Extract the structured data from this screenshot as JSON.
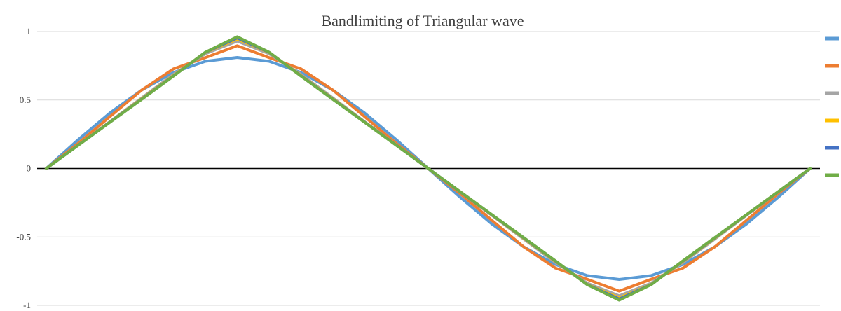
{
  "chart_data": {
    "type": "line",
    "title": "Bandlimiting of Triangular wave",
    "xlabel": "",
    "ylabel": "",
    "ylim": [
      -1,
      1
    ],
    "yticks": [
      1,
      0.5,
      0,
      -0.5,
      -1
    ],
    "ytick_labels": [
      "1",
      "0.5",
      "0",
      "-0.5",
      "-1"
    ],
    "grid": true,
    "legend": "right",
    "x": [
      0,
      0.0417,
      0.0833,
      0.125,
      0.1667,
      0.2083,
      0.25,
      0.2917,
      0.3333,
      0.375,
      0.4167,
      0.4583,
      0.5,
      0.5417,
      0.5833,
      0.625,
      0.6667,
      0.7083,
      0.75,
      0.7917,
      0.8333,
      0.875,
      0.9167,
      0.9583,
      1
    ],
    "series": [
      {
        "color": "#5b9bd5",
        "values": [
          0,
          0.2097,
          0.405,
          0.5728,
          0.7015,
          0.7824,
          0.8106,
          0.7824,
          0.7015,
          0.5728,
          0.405,
          0.2097,
          0,
          -0.2097,
          -0.405,
          -0.5728,
          -0.7015,
          -0.7824,
          -0.8106,
          -0.7824,
          -0.7015,
          -0.5728,
          -0.405,
          -0.2097,
          0
        ]
      },
      {
        "color": "#ed7d31",
        "values": [
          0,
          0.1824,
          0.3787,
          0.5728,
          0.7278,
          0.8097,
          0.8956,
          0.8097,
          0.7278,
          0.5728,
          0.3787,
          0.1824,
          0,
          -0.1824,
          -0.3787,
          -0.5728,
          -0.7278,
          -0.8097,
          -0.8956,
          -0.8097,
          -0.7278,
          -0.5728,
          -0.3787,
          -0.1824,
          0
        ]
      },
      {
        "color": "#a5a5a5",
        "values": [
          0,
          0.1714,
          0.3418,
          0.5156,
          0.6873,
          0.8381,
          0.9302,
          0.8381,
          0.6873,
          0.5156,
          0.3418,
          0.1714,
          0,
          -0.1714,
          -0.3418,
          -0.5156,
          -0.6873,
          -0.8381,
          -0.9302,
          -0.8381,
          -0.6873,
          -0.5156,
          -0.3418,
          -0.1714,
          0
        ]
      },
      {
        "color": "#ffc000",
        "values": [
          0,
          0.1708,
          0.3389,
          0.5096,
          0.6797,
          0.847,
          0.9459,
          0.847,
          0.6797,
          0.5096,
          0.3389,
          0.1708,
          0,
          -0.1708,
          -0.3389,
          -0.5096,
          -0.6797,
          -0.847,
          -0.9459,
          -0.847,
          -0.6797,
          -0.5096,
          -0.3389,
          -0.1708,
          0
        ]
      },
      {
        "color": "#4472c4",
        "values": [
          0,
          0.17,
          0.338,
          0.507,
          0.677,
          0.848,
          0.954,
          0.848,
          0.677,
          0.507,
          0.338,
          0.17,
          0,
          -0.17,
          -0.338,
          -0.507,
          -0.677,
          -0.848,
          -0.954,
          -0.848,
          -0.677,
          -0.507,
          -0.338,
          -0.17,
          0
        ]
      },
      {
        "color": "#70ad47",
        "values": [
          0,
          0.169,
          0.337,
          0.505,
          0.675,
          0.849,
          0.962,
          0.849,
          0.675,
          0.505,
          0.337,
          0.169,
          0,
          -0.169,
          -0.337,
          -0.505,
          -0.675,
          -0.849,
          -0.962,
          -0.849,
          -0.675,
          -0.505,
          -0.337,
          -0.169,
          0
        ]
      }
    ]
  }
}
